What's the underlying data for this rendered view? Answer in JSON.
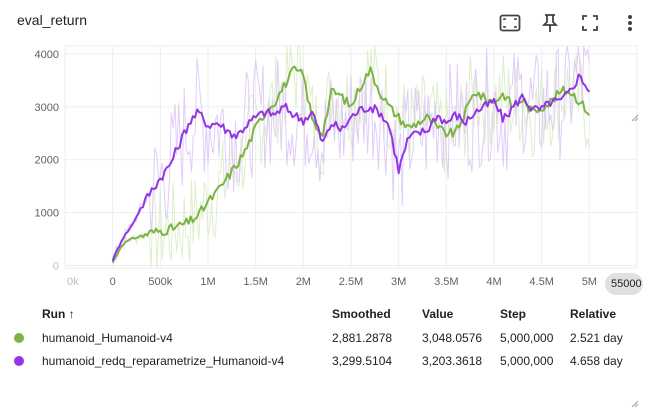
{
  "title": "eval_return",
  "toolbar": {
    "icons": [
      "fit-domain-icon",
      "pin-icon",
      "fullscreen-icon",
      "more-vert-icon"
    ]
  },
  "chart_data": {
    "type": "line",
    "title": "eval_return",
    "xlabel": "",
    "ylabel": "",
    "xlim": [
      -500000,
      5500000
    ],
    "ylim": [
      -50,
      4150
    ],
    "x_ticks": [
      0,
      500000,
      1000000,
      1500000,
      2000000,
      2500000,
      3000000,
      3500000,
      4000000,
      4500000,
      5000000
    ],
    "x_tick_labels": [
      "0",
      "500k",
      "1M",
      "1.5M",
      "2M",
      "2.5M",
      "3M",
      "3.5M",
      "4M",
      "4.5M",
      "5M"
    ],
    "y_ticks": [
      0,
      1000,
      2000,
      3000,
      4000
    ],
    "y_tick_labels": [
      "0",
      "1000",
      "2000",
      "3000",
      "4000"
    ],
    "ghost_labels": {
      "x_left": "0k",
      "y_bottom": "0",
      "x_right": "5500000"
    },
    "grid": true,
    "series": [
      {
        "name": "humanoid_Humanoid-v4",
        "color": "#7cb342",
        "x": [
          0,
          100000,
          200000,
          300000,
          400000,
          500000,
          600000,
          700000,
          800000,
          900000,
          1000000,
          1100000,
          1200000,
          1300000,
          1400000,
          1500000,
          1600000,
          1700000,
          1800000,
          1900000,
          2000000,
          2100000,
          2200000,
          2300000,
          2400000,
          2500000,
          2600000,
          2700000,
          2800000,
          2900000,
          3000000,
          3100000,
          3200000,
          3300000,
          3400000,
          3500000,
          3600000,
          3700000,
          3800000,
          3900000,
          4000000,
          4100000,
          4200000,
          4300000,
          4400000,
          4500000,
          4600000,
          4700000,
          4800000,
          4900000,
          5000000
        ],
        "values": [
          50,
          400,
          500,
          560,
          620,
          650,
          680,
          750,
          820,
          950,
          1200,
          1400,
          1650,
          1900,
          2200,
          2600,
          2900,
          3100,
          3400,
          3700,
          3600,
          2700,
          2500,
          3300,
          3200,
          3000,
          3400,
          3700,
          3300,
          3000,
          2800,
          2600,
          2700,
          2800,
          2600,
          2500,
          2500,
          2900,
          3300,
          3150,
          3100,
          3250,
          3000,
          3150,
          2900,
          3000,
          3100,
          3300,
          3300,
          3100,
          2881
        ]
      },
      {
        "name": "humanoid_redq_reparametrize_Humanoid-v4",
        "color": "#9334e6",
        "x": [
          0,
          100000,
          200000,
          300000,
          400000,
          500000,
          600000,
          700000,
          800000,
          900000,
          1000000,
          1100000,
          1200000,
          1300000,
          1400000,
          1500000,
          1600000,
          1700000,
          1800000,
          1900000,
          2000000,
          2100000,
          2200000,
          2300000,
          2400000,
          2500000,
          2600000,
          2700000,
          2800000,
          2900000,
          3000000,
          3100000,
          3200000,
          3300000,
          3400000,
          3500000,
          3600000,
          3700000,
          3800000,
          3900000,
          4000000,
          4100000,
          4200000,
          4300000,
          4400000,
          4500000,
          4600000,
          4700000,
          4800000,
          4900000,
          5000000
        ],
        "values": [
          100,
          500,
          750,
          1100,
          1400,
          1650,
          1900,
          2300,
          2700,
          2900,
          2650,
          2700,
          2550,
          2450,
          2650,
          2800,
          2900,
          2850,
          3000,
          2850,
          2750,
          2900,
          2300,
          2700,
          2550,
          2800,
          2950,
          3000,
          2900,
          2650,
          1800,
          2400,
          2500,
          2550,
          2850,
          2700,
          2850,
          2700,
          2900,
          3000,
          3100,
          2750,
          3000,
          3200,
          2950,
          2950,
          3100,
          3100,
          3300,
          3600,
          3299
        ]
      }
    ]
  },
  "badge_text": "55000",
  "table": {
    "headers": {
      "run": "Run ↑",
      "smoothed": "Smoothed",
      "value": "Value",
      "step": "Step",
      "relative": "Relative"
    },
    "rows": [
      {
        "name": "humanoid_Humanoid-v4",
        "color": "#7cb342",
        "smoothed": "2,881.2878",
        "value": "3,048.0576",
        "step": "5,000,000",
        "relative": "2.521 day"
      },
      {
        "name": "humanoid_redq_reparametrize_Humanoid-v4",
        "color": "#9334e6",
        "smoothed": "3,299.5104",
        "value": "3,203.3618",
        "step": "5,000,000",
        "relative": "4.658 day"
      }
    ]
  }
}
